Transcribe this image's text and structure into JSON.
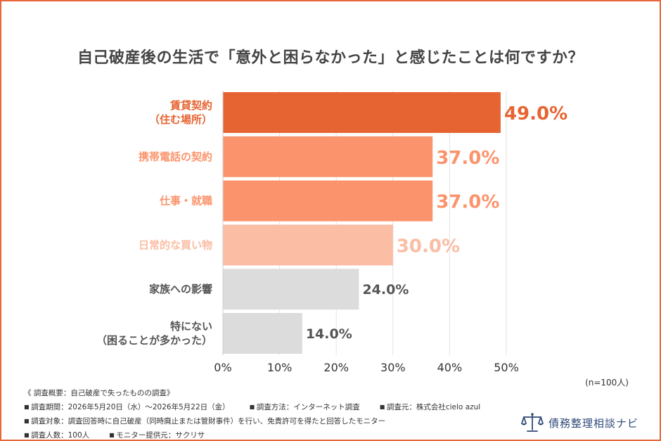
{
  "title": "自己破産後の生活で「意外と困らなかった」と感じたことは何ですか？",
  "chart_data": {
    "type": "bar",
    "orientation": "horizontal",
    "categories": [
      [
        "賃貸契約",
        "（住む場所）"
      ],
      [
        "携帯電話の契約"
      ],
      [
        "仕事・就職"
      ],
      [
        "日常的な買い物"
      ],
      [
        "家族への影響"
      ],
      [
        "特にない",
        "（困ることが多かった）"
      ]
    ],
    "values": [
      49.0,
      37.0,
      37.0,
      30.0,
      24.0,
      14.0
    ],
    "value_labels": [
      "49.0%",
      "37.0%",
      "37.0%",
      "30.0%",
      "24.0%",
      "14.0%"
    ],
    "bar_colors": [
      "#e66431",
      "#fb946c",
      "#fb946c",
      "#fbbda3",
      "#dcdcdc",
      "#dcdcdc"
    ],
    "label_colors": [
      "#e66431",
      "#fb946c",
      "#fb946c",
      "#fbbda3",
      "#555555",
      "#555555"
    ],
    "x_ticks": [
      "0%",
      "10%",
      "20%",
      "30%",
      "40%",
      "50%"
    ],
    "xlim": [
      0,
      50
    ],
    "grid": true
  },
  "sample_note": "(n=100人)",
  "survey": {
    "heading": "《 調査概要：自己破産で失ったものの調査》",
    "period": "調査期間：2026年5月20日（水）〜2026年5月22日（金）",
    "method": "調査方法：インターネット調査",
    "source": "調査元：株式会社cielo azul",
    "target": "調査対象：調査回答時に自己破産（同時廃止または管財事件）を行い、免責許可を得たと回答したモニター",
    "count": "調査人数：100人",
    "provider": "モニター提供元：サクリサ"
  },
  "brand": {
    "name": "債務整理相談ナビ",
    "icon": "scales-of-justice-icon"
  },
  "colors": {
    "frame": "#e8673a",
    "brand": "#2f4a7a"
  }
}
